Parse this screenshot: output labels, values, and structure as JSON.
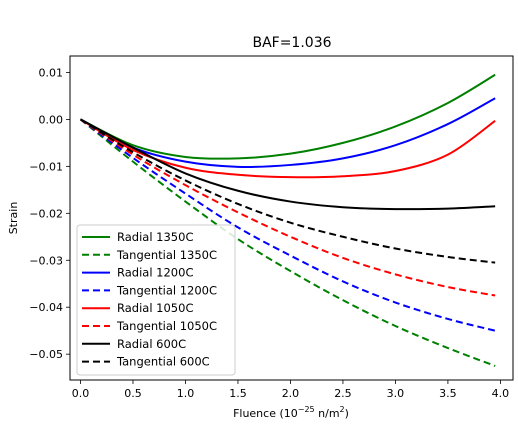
{
  "chart_data": {
    "type": "line",
    "title": "BAF=1.036",
    "xlabel_prefix": "Fluence (10",
    "xlabel_exp": "−25",
    "xlabel_suffix": " n/m",
    "xlabel_sq": "2",
    "xlabel_close": ")",
    "ylabel": "Strain",
    "xlim": [
      -0.1,
      4.12
    ],
    "ylim": [
      -0.0555,
      0.0135
    ],
    "xticks": [
      0.0,
      0.5,
      1.0,
      1.5,
      2.0,
      2.5,
      3.0,
      3.5,
      4.0
    ],
    "xtick_labels": [
      "0.0",
      "0.5",
      "1.0",
      "1.5",
      "2.0",
      "2.5",
      "3.0",
      "3.5",
      "4.0"
    ],
    "yticks": [
      0.01,
      0.0,
      -0.01,
      -0.02,
      -0.03,
      -0.04,
      -0.05
    ],
    "ytick_labels": [
      "0.01",
      "0.00",
      "−0.01",
      "−0.02",
      "−0.03",
      "−0.04",
      "−0.05"
    ],
    "grid": false,
    "legend_position": "lower-left",
    "x": [
      0.0,
      0.5,
      1.0,
      1.5,
      2.0,
      2.5,
      3.0,
      3.5,
      3.95
    ],
    "series": [
      {
        "name": "Radial 1350C",
        "color": "#008000",
        "dash": "solid",
        "values": [
          0.0,
          -0.0055,
          -0.008,
          -0.0083,
          -0.0073,
          -0.005,
          -0.0015,
          0.0035,
          0.0095
        ]
      },
      {
        "name": "Tangential 1350C",
        "color": "#008000",
        "dash": "dashed",
        "values": [
          0.0,
          -0.009,
          -0.0175,
          -0.0255,
          -0.0323,
          -0.0385,
          -0.044,
          -0.0487,
          -0.0525
        ]
      },
      {
        "name": "Radial 1200C",
        "color": "#0000ff",
        "dash": "solid",
        "values": [
          0.0,
          -0.006,
          -0.009,
          -0.0101,
          -0.0097,
          -0.0083,
          -0.0055,
          -0.001,
          0.0045
        ]
      },
      {
        "name": "Tangential 1200C",
        "color": "#0000ff",
        "dash": "dashed",
        "values": [
          0.0,
          -0.0082,
          -0.0158,
          -0.023,
          -0.029,
          -0.0345,
          -0.039,
          -0.0425,
          -0.045
        ]
      },
      {
        "name": "Radial 1050C",
        "color": "#ff0000",
        "dash": "solid",
        "values": [
          0.0,
          -0.0065,
          -0.0103,
          -0.0118,
          -0.0123,
          -0.0121,
          -0.011,
          -0.0075,
          -0.0003
        ]
      },
      {
        "name": "Tangential 1050C",
        "color": "#ff0000",
        "dash": "dashed",
        "values": [
          0.0,
          -0.0075,
          -0.014,
          -0.0198,
          -0.025,
          -0.0295,
          -0.033,
          -0.0357,
          -0.0375
        ]
      },
      {
        "name": "Radial 600C",
        "color": "#000000",
        "dash": "solid",
        "values": [
          0.0,
          -0.006,
          -0.0115,
          -0.0152,
          -0.0175,
          -0.0187,
          -0.0191,
          -0.019,
          -0.0185
        ]
      },
      {
        "name": "Tangential 600C",
        "color": "#000000",
        "dash": "dashed",
        "values": [
          0.0,
          -0.007,
          -0.013,
          -0.018,
          -0.022,
          -0.025,
          -0.0275,
          -0.0293,
          -0.0305
        ]
      }
    ]
  }
}
